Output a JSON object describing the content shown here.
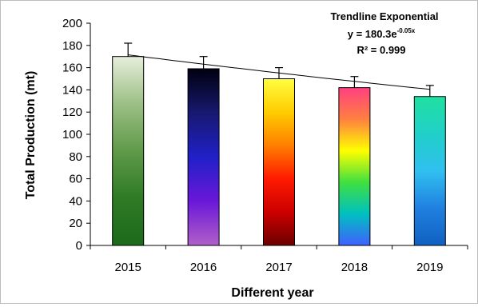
{
  "chart_data": {
    "type": "bar",
    "title": "",
    "xlabel": "Different year",
    "ylabel": "Total Production (mt)",
    "categories": [
      "2015",
      "2016",
      "2017",
      "2018",
      "2019"
    ],
    "values": [
      170,
      159,
      150,
      142,
      134
    ],
    "error": [
      12,
      11,
      10,
      10,
      10
    ],
    "ylim": [
      0,
      200
    ],
    "yticks": [
      0,
      20,
      40,
      60,
      80,
      100,
      120,
      140,
      160,
      180,
      200
    ],
    "grid": false,
    "legend": "none",
    "trendline": {
      "type": "exponential",
      "a": 180.3,
      "b": -0.05,
      "title": "Trendline Exponential",
      "equation_prefix": "y = 180.3e",
      "equation_exponent": "-0.05x",
      "r_squared_label": "R² = 0.999"
    },
    "bar_gradients": [
      [
        "#e6eedc",
        "#9cbf85",
        "#5f9a4a",
        "#2f7a26",
        "#1b6a1b"
      ],
      [
        "#000010",
        "#181870",
        "#2020c8",
        "#6a18d8",
        "#b060c8"
      ],
      [
        "#ffff40",
        "#ffcc00",
        "#ff7f00",
        "#ff1a00",
        "#cc0000",
        "#6b0000"
      ],
      [
        "#ff4080",
        "#ff8040",
        "#ffff00",
        "#40e040",
        "#00c0c0",
        "#4060ff"
      ],
      [
        "#20e0a0",
        "#20d0c8",
        "#30c0f0",
        "#2080e0",
        "#1060c0"
      ]
    ],
    "colors": {
      "axis": "#000000",
      "trendline": "#000000",
      "error_bar": "#000000",
      "bar_outline": "#000000"
    }
  }
}
